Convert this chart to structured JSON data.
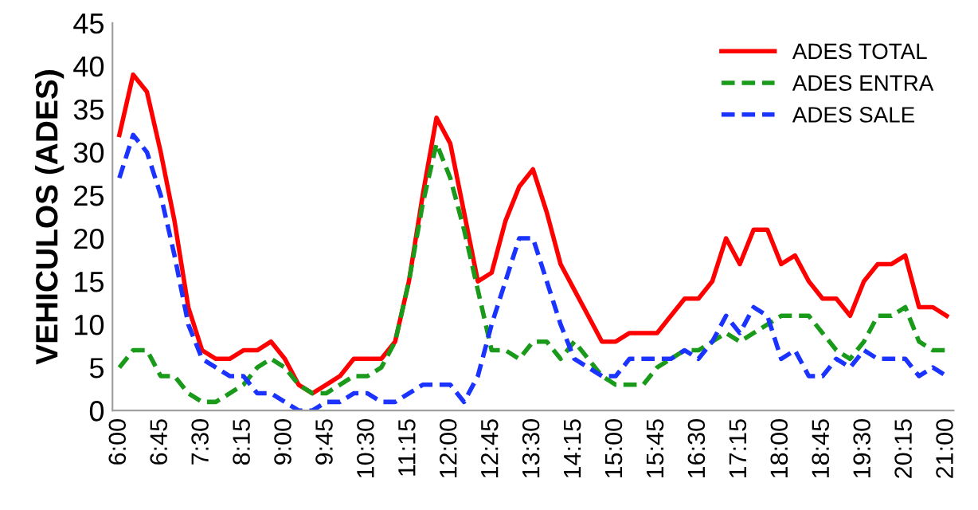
{
  "chart_data": {
    "type": "line",
    "ylabel": "VEHICULOS (ADES)",
    "categories": [
      "6:00",
      null,
      null,
      "6:45",
      null,
      null,
      "7:30",
      null,
      null,
      "8:15",
      null,
      null,
      "9:00",
      null,
      null,
      "9:45",
      null,
      null,
      "10:30",
      null,
      null,
      "11:15",
      null,
      null,
      "12:00",
      null,
      null,
      "12:45",
      null,
      null,
      "13:30",
      null,
      null,
      "14:15",
      null,
      null,
      "15:00",
      null,
      null,
      "15:45",
      null,
      null,
      "16:30",
      null,
      null,
      "17:15",
      null,
      null,
      "18:00",
      null,
      null,
      "18:45",
      null,
      null,
      "19:30",
      null,
      null,
      "20:15",
      null,
      null,
      "21:00"
    ],
    "series": [
      {
        "name": "ADES TOTAL",
        "color": "#ff0000",
        "line_style": "solid",
        "values": [
          32,
          39,
          37,
          30,
          22,
          12,
          7,
          6,
          6,
          7,
          7,
          8,
          6,
          3,
          2,
          3,
          4,
          6,
          6,
          6,
          8,
          15,
          25,
          34,
          31,
          23,
          15,
          16,
          22,
          26,
          28,
          23,
          17,
          14,
          11,
          8,
          8,
          9,
          9,
          9,
          11,
          13,
          13,
          15,
          20,
          17,
          21,
          21,
          17,
          18,
          15,
          13,
          13,
          11,
          15,
          17,
          17,
          18,
          12,
          12,
          11
        ]
      },
      {
        "name": "ADES ENTRA",
        "color": "#1a9a1a",
        "line_style": "dashed",
        "values": [
          5,
          7,
          7,
          4,
          4,
          2,
          1,
          1,
          2,
          3,
          5,
          6,
          5,
          3,
          2,
          2,
          3,
          4,
          4,
          5,
          8,
          15,
          24,
          31,
          27,
          21,
          14,
          7,
          7,
          6,
          8,
          8,
          6,
          8,
          6,
          4,
          3,
          3,
          3,
          5,
          6,
          7,
          7,
          8,
          9,
          8,
          9,
          10,
          11,
          11,
          11,
          9,
          7,
          6,
          8,
          11,
          11,
          12,
          8,
          7,
          7
        ]
      },
      {
        "name": "ADES SALE",
        "color": "#1a33ff",
        "line_style": "dashed",
        "values": [
          27,
          32,
          30,
          25,
          18,
          10,
          6,
          5,
          4,
          4,
          2,
          2,
          1,
          0,
          0,
          1,
          1,
          2,
          2,
          1,
          1,
          2,
          3,
          3,
          3,
          1,
          4,
          10,
          15,
          20,
          20,
          15,
          10,
          6,
          5,
          4,
          4,
          6,
          6,
          6,
          6,
          7,
          6,
          8,
          11,
          9,
          12,
          11,
          6,
          7,
          4,
          4,
          6,
          5,
          7,
          6,
          6,
          6,
          4,
          5,
          4
        ]
      }
    ],
    "ylim": [
      0,
      45
    ],
    "yticks": [
      0,
      5,
      10,
      15,
      20,
      25,
      30,
      35,
      40,
      45
    ],
    "grid": false,
    "legend": "top right",
    "marker": "none"
  }
}
